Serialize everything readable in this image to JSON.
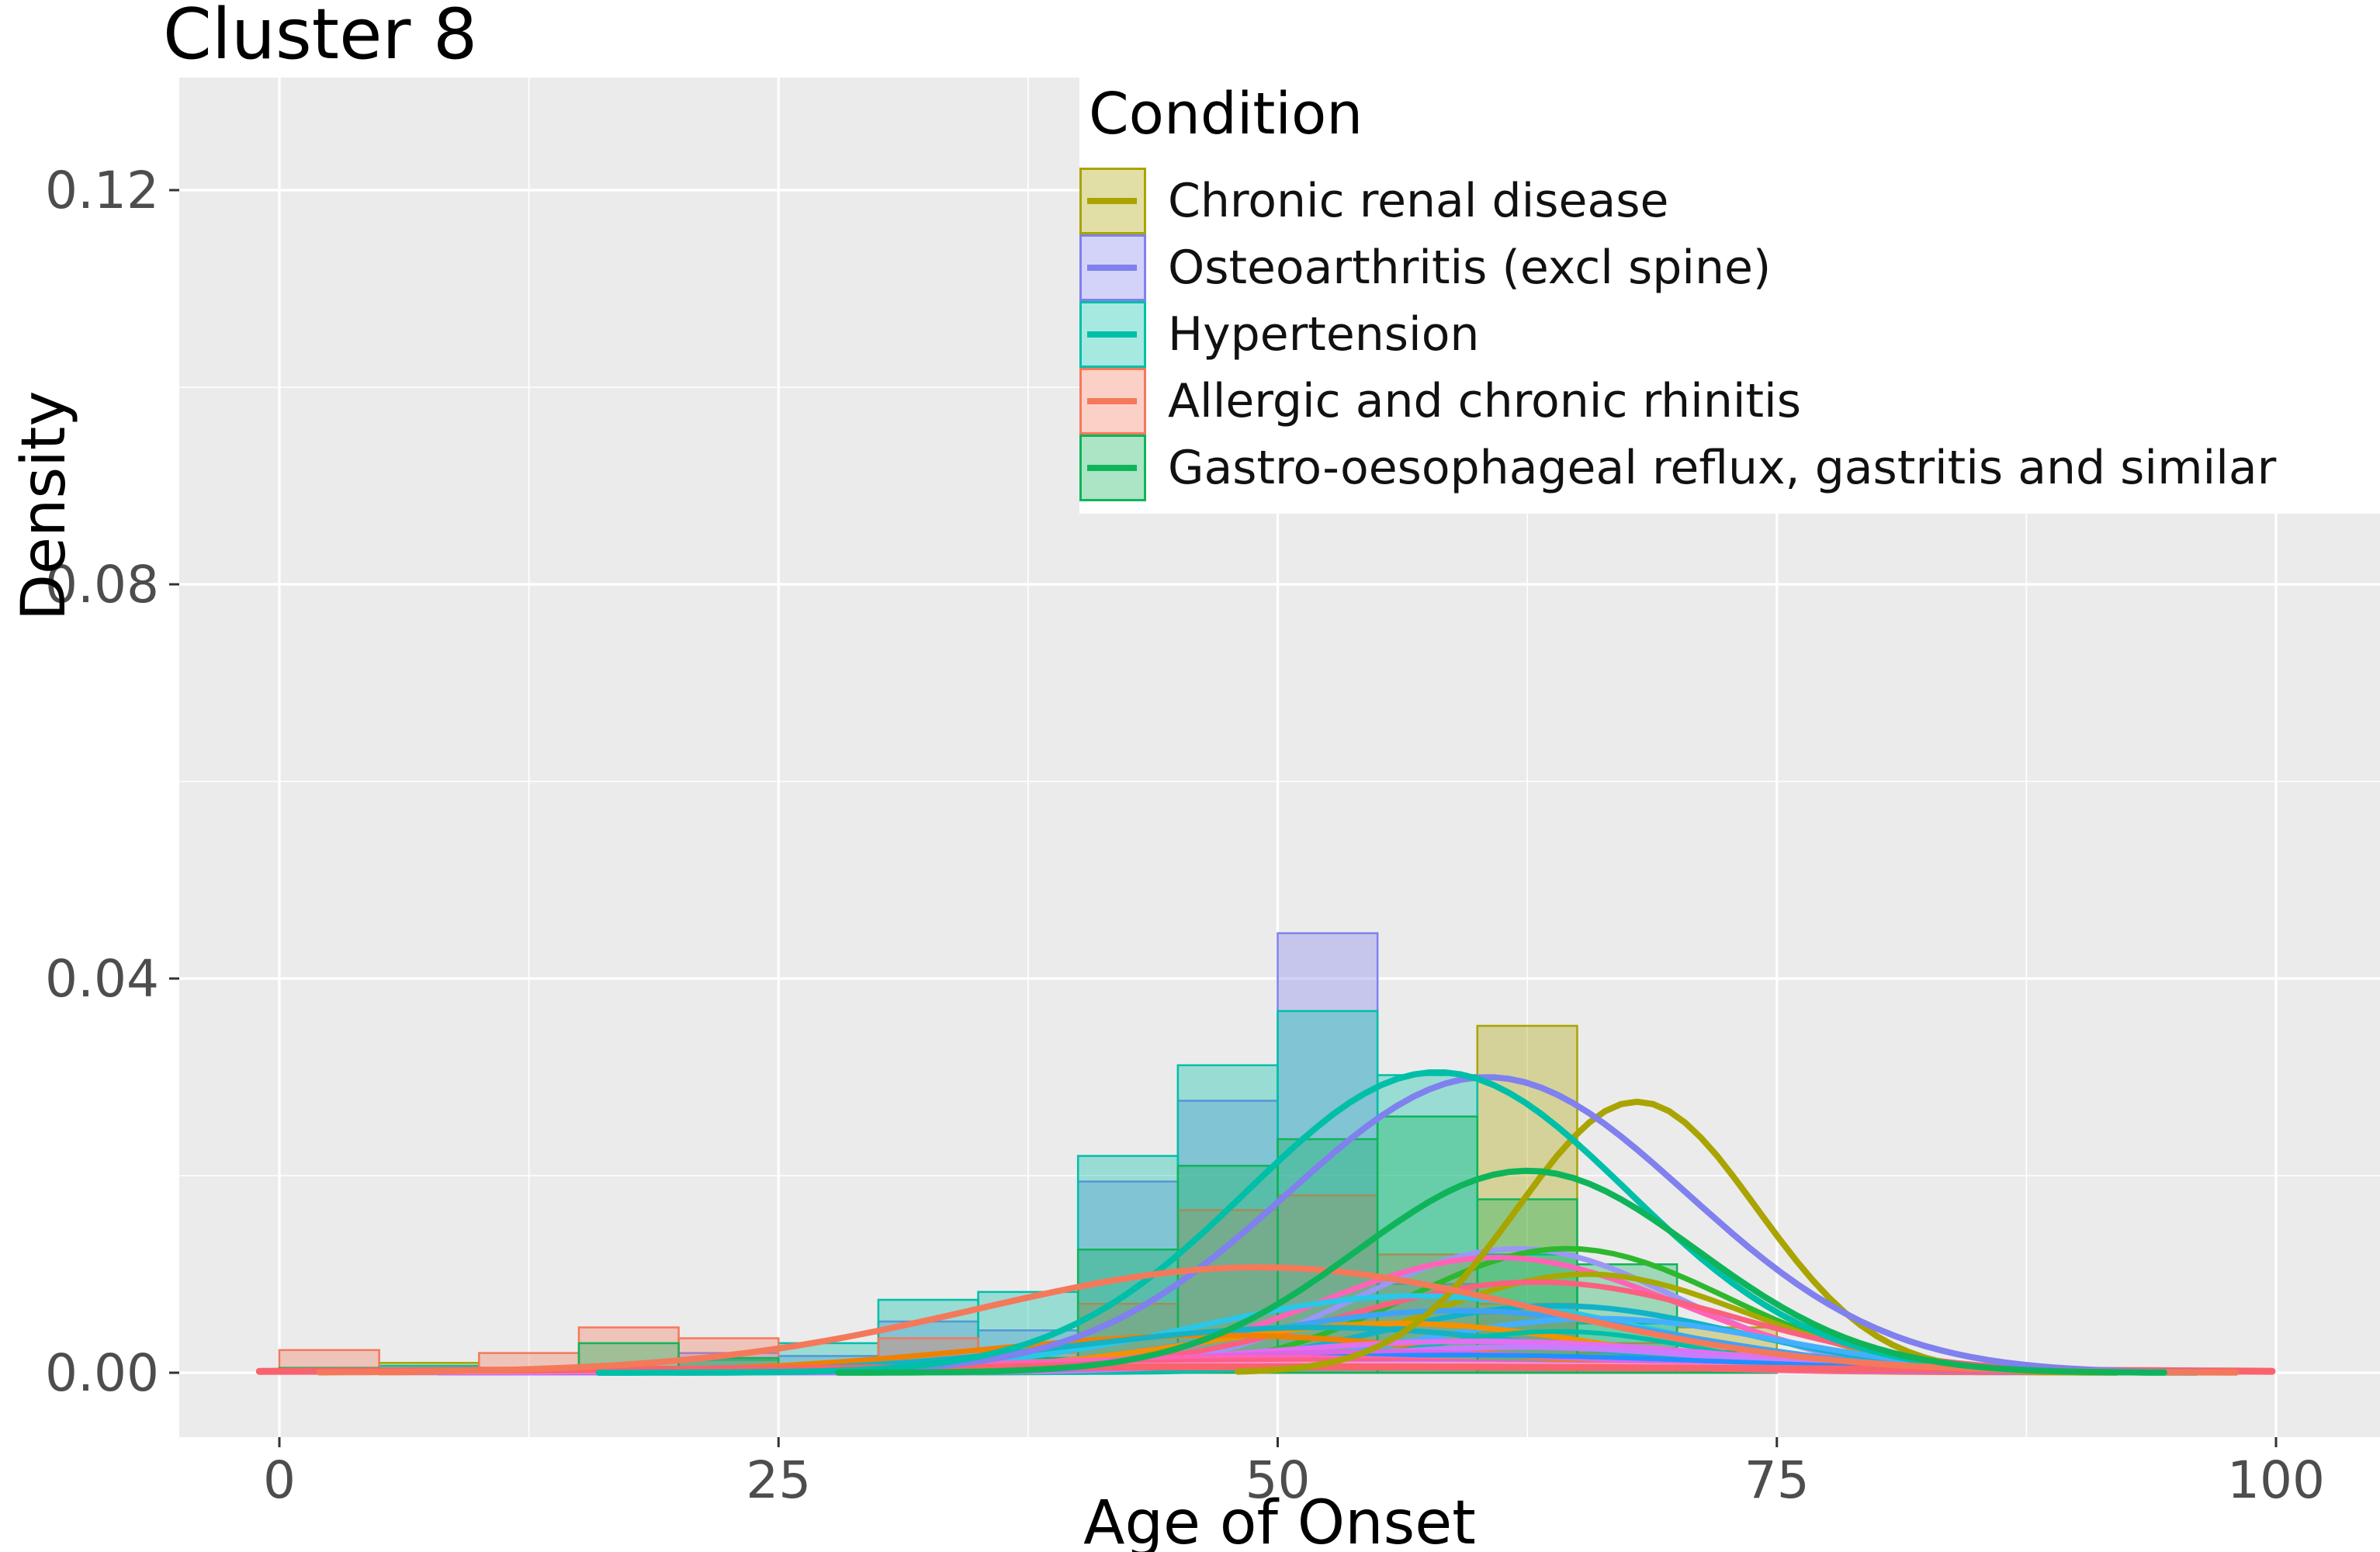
{
  "title": "Cluster 8",
  "axes": {
    "xlabel": "Age of Onset",
    "ylabel": "Density",
    "x_tick_labels": [
      "0",
      "25",
      "50",
      "75",
      "100"
    ],
    "x_tick_values": [
      0,
      25,
      50,
      75,
      100
    ],
    "y_tick_labels": [
      "0.00",
      "0.04",
      "0.08",
      "0.12"
    ],
    "y_tick_values": [
      0,
      0.04,
      0.08,
      0.12
    ],
    "x_minor": [
      12.5,
      37.5,
      62.5,
      87.5
    ],
    "y_minor": [
      0.02,
      0.06,
      0.1
    ],
    "xlim": [
      -5,
      105.2
    ],
    "ylim": [
      -0.0065,
      0.1314
    ]
  },
  "legend": {
    "title": "Condition",
    "items": [
      {
        "label": "Chronic renal disease",
        "color": "#A9A400"
      },
      {
        "label": "Osteoarthritis (excl spine)",
        "color": "#8080EE"
      },
      {
        "label": "Hypertension",
        "color": "#00BFA8"
      },
      {
        "label": "Allergic and chronic rhinitis",
        "color": "#F4795B"
      },
      {
        "label": "Gastro-oesophageal reflux, gastritis and similar",
        "color": "#0FB45A"
      }
    ]
  },
  "style": {
    "panel_bg": "#EBEBEB",
    "grid_color": "#FFFFFF",
    "tick_label_color": "#4D4D4D",
    "tick_mark_color": "#333333",
    "bar_fill_opacity": 0.35,
    "bin_width": 5
  },
  "chart_data": {
    "type": "histogram+density",
    "title": "Cluster 8",
    "xlabel": "Age of Onset",
    "ylabel": "Density",
    "xlim": [
      -5,
      105.2
    ],
    "ylim": [
      -0.0065,
      0.1314
    ],
    "legend_position": "top-right-inside",
    "grid": true,
    "series": [
      {
        "name": "Chronic renal disease",
        "color": "#A9A400",
        "bars": [
          {
            "x0": 5,
            "h": 0.001
          },
          {
            "x0": 60,
            "h": 0.0352
          },
          {
            "x0": 65,
            "h": 0.002
          },
          {
            "x0": 70,
            "h": 0.0046
          }
        ],
        "curve": {
          "mu": 68,
          "sigma": 6,
          "peak": 0.0275,
          "xmin": 48,
          "xmax": 92,
          "width": 8
        }
      },
      {
        "name": "Osteoarthritis (excl spine)",
        "color": "#8080EE",
        "bars": [
          {
            "x0": 20,
            "h": 0.002
          },
          {
            "x0": 25,
            "h": 0.0017
          },
          {
            "x0": 30,
            "h": 0.0052
          },
          {
            "x0": 35,
            "h": 0.0043
          },
          {
            "x0": 40,
            "h": 0.0194
          },
          {
            "x0": 45,
            "h": 0.0276
          },
          {
            "x0": 50,
            "h": 0.0446
          },
          {
            "x0": 55,
            "h": 0.009
          },
          {
            "x0": 60,
            "h": 0.006
          },
          {
            "x0": 65,
            "h": 0.0025
          }
        ],
        "curve": {
          "mu": 60.5,
          "sigma": 10,
          "peak": 0.03,
          "xmin": 20,
          "xmax": 98,
          "width": 8
        }
      },
      {
        "name": "Hypertension",
        "color": "#00BFA8",
        "bars": [
          {
            "x0": 5,
            "h": 0.0007
          },
          {
            "x0": 20,
            "h": 0.0013
          },
          {
            "x0": 25,
            "h": 0.003
          },
          {
            "x0": 30,
            "h": 0.0074
          },
          {
            "x0": 35,
            "h": 0.0082
          },
          {
            "x0": 40,
            "h": 0.022
          },
          {
            "x0": 45,
            "h": 0.0312
          },
          {
            "x0": 50,
            "h": 0.0367
          },
          {
            "x0": 55,
            "h": 0.0302
          },
          {
            "x0": 60,
            "h": 0.012
          },
          {
            "x0": 65,
            "h": 0.005
          },
          {
            "x0": 70,
            "h": 0.0012
          }
        ],
        "curve": {
          "mu": 58,
          "sigma": 9.5,
          "peak": 0.0305,
          "xmin": 16,
          "xmax": 96,
          "width": 8
        }
      },
      {
        "name": "Allergic and chronic rhinitis",
        "color": "#F4795B",
        "bars": [
          {
            "x0": 0,
            "h": 0.0023
          },
          {
            "x0": 10,
            "h": 0.002
          },
          {
            "x0": 15,
            "h": 0.0046
          },
          {
            "x0": 20,
            "h": 0.0035
          },
          {
            "x0": 25,
            "h": 0.0008
          },
          {
            "x0": 30,
            "h": 0.0035
          },
          {
            "x0": 35,
            "h": 0.002
          },
          {
            "x0": 40,
            "h": 0.007
          },
          {
            "x0": 45,
            "h": 0.0165
          },
          {
            "x0": 50,
            "h": 0.018
          },
          {
            "x0": 55,
            "h": 0.012
          },
          {
            "x0": 60,
            "h": 0.007
          },
          {
            "x0": 65,
            "h": 0.003
          }
        ],
        "curve": {
          "mu": 49,
          "sigma": 14,
          "peak": 0.0107,
          "xmin": 2,
          "xmax": 98,
          "width": 8
        }
      },
      {
        "name": "Gastro-oesophageal reflux, gastritis and similar",
        "color": "#0FB45A",
        "bars": [
          {
            "x0": 0,
            "h": 0.0005
          },
          {
            "x0": 15,
            "h": 0.003
          },
          {
            "x0": 20,
            "h": 0.0015
          },
          {
            "x0": 35,
            "h": 0.0015
          },
          {
            "x0": 40,
            "h": 0.0125
          },
          {
            "x0": 45,
            "h": 0.021
          },
          {
            "x0": 50,
            "h": 0.0237
          },
          {
            "x0": 55,
            "h": 0.026
          },
          {
            "x0": 60,
            "h": 0.0176
          },
          {
            "x0": 65,
            "h": 0.011
          },
          {
            "x0": 70,
            "h": 0.0022
          }
        ],
        "curve": {
          "mu": 62.5,
          "sigma": 8.5,
          "peak": 0.0205,
          "xmin": 28,
          "xmax": 95,
          "width": 8
        }
      }
    ],
    "other_density_curves": [
      {
        "color": "#9A97F5",
        "mu": 62,
        "sigma": 8,
        "peak": 0.0126,
        "xmin": 28,
        "xmax": 96,
        "width": 7
      },
      {
        "color": "#2EB82E",
        "mu": 64.5,
        "sigma": 8,
        "peak": 0.0126,
        "xmin": 30,
        "xmax": 96,
        "width": 7
      },
      {
        "color": "#FF63B8",
        "mu": 61,
        "sigma": 9,
        "peak": 0.0117,
        "xmin": 25,
        "xmax": 96,
        "width": 7
      },
      {
        "color": "#A8A800",
        "mu": 65.5,
        "sigma": 8,
        "peak": 0.01,
        "xmin": 32,
        "xmax": 95,
        "width": 7
      },
      {
        "color": "#FB607F",
        "mu": 63,
        "sigma": 10,
        "peak": 0.0092,
        "xmin": 22,
        "xmax": 97,
        "width": 7
      },
      {
        "color": "#29C7E8",
        "mu": 57,
        "sigma": 11,
        "peak": 0.0078,
        "xmin": 15,
        "xmax": 96,
        "width": 7
      },
      {
        "color": "#12B2C8",
        "mu": 64,
        "sigma": 9,
        "peak": 0.0068,
        "xmin": 25,
        "xmax": 96,
        "width": 7
      },
      {
        "color": "#3FA3F5",
        "mu": 59,
        "sigma": 11,
        "peak": 0.0063,
        "xmin": 15,
        "xmax": 96,
        "width": 7
      },
      {
        "color": "#45AFFF",
        "mu": 66,
        "sigma": 9,
        "peak": 0.0055,
        "xmin": 25,
        "xmax": 97,
        "width": 7
      },
      {
        "color": "#F59100",
        "mu": 56,
        "sigma": 10,
        "peak": 0.005,
        "xmin": 15,
        "xmax": 92,
        "width": 7
      },
      {
        "color": "#EF8100",
        "mu": 47,
        "sigma": 12,
        "peak": 0.0038,
        "xmin": 5,
        "xmax": 90,
        "width": 7
      },
      {
        "color": "#15B2C4",
        "mu": 52,
        "sigma": 12,
        "peak": 0.0046,
        "xmin": 8,
        "xmax": 94,
        "width": 7
      },
      {
        "color": "#00BFA8",
        "mu": 64,
        "sigma": 7,
        "peak": 0.0042,
        "xmin": 35,
        "xmax": 92,
        "width": 6
      },
      {
        "color": "#E36FF2",
        "mu": 60,
        "sigma": 12,
        "peak": 0.0032,
        "xmin": 10,
        "xmax": 98,
        "width": 7
      },
      {
        "color": "#C77DFF",
        "mu": 62,
        "sigma": 10,
        "peak": 0.0026,
        "xmin": 15,
        "xmax": 98,
        "width": 7
      },
      {
        "color": "#D966E8",
        "mu": 55,
        "sigma": 12,
        "peak": 0.0021,
        "xmin": 8,
        "xmax": 97,
        "width": 7
      },
      {
        "color": "#1E90FF",
        "mu": 59,
        "sigma": 14,
        "peak": 0.0018,
        "xmin": 5,
        "xmax": 98,
        "width": 6
      },
      {
        "color": "#FF63B8",
        "mu": 49,
        "sigma": 13,
        "peak": 0.0016,
        "xmin": 5,
        "xmax": 95,
        "width": 6
      },
      {
        "color": "#FA5F87",
        "mu": 52,
        "sigma": 14,
        "peak": 0.0013,
        "xmin": 3,
        "xmax": 96,
        "width": 6
      },
      {
        "color": "#B46FF0",
        "mu": 58,
        "sigma": 12,
        "peak": 0.001,
        "xmin": 5,
        "xmax": 97,
        "width": 6
      },
      {
        "color": "#FF8FD0",
        "mu": 55,
        "sigma": 20,
        "peak": 0.0009,
        "xmin": 0,
        "xmax": 99,
        "width": 6
      },
      {
        "color": "#F8636E",
        "mu": 50,
        "sigma": 30,
        "peak": 0.0006,
        "xmin": -1,
        "xmax": 100.5,
        "width": 9
      }
    ]
  }
}
